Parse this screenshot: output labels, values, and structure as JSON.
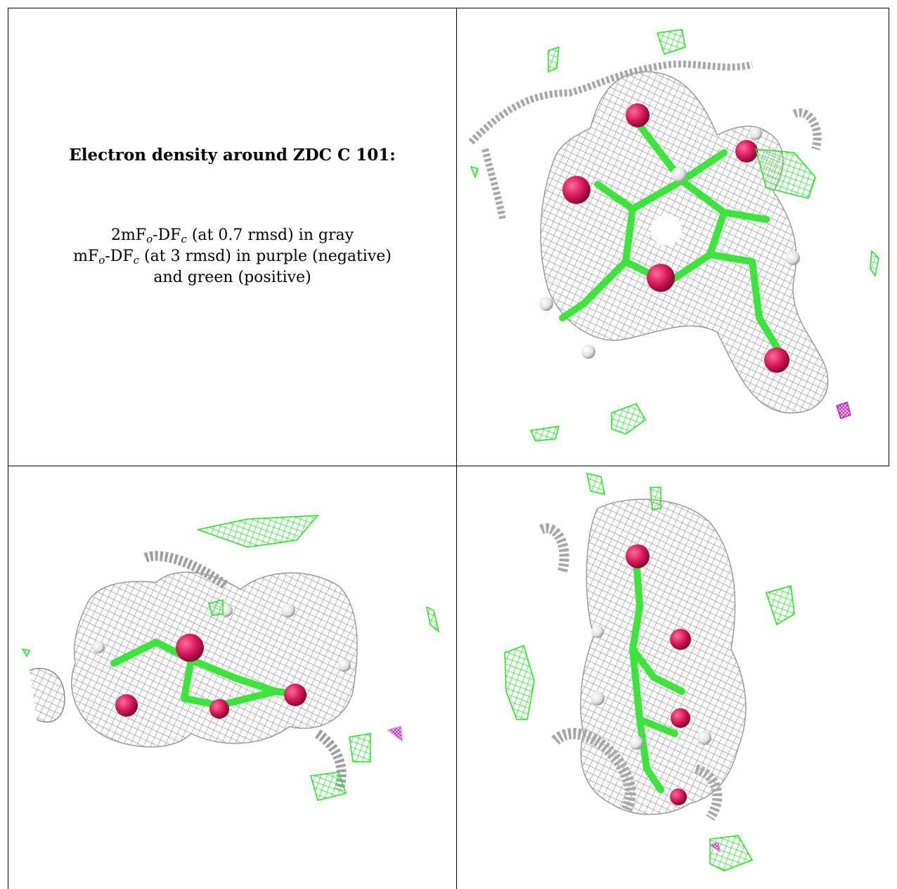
{
  "panel_title": "Electron density around ZDC C 101:",
  "legend": {
    "line1_a": "2mF",
    "line1_sub1": "o",
    "line1_b": "-DF",
    "line1_sub2": "c",
    "line1_c": " (at 0.7 rmsd) in gray",
    "line2_a": "mF",
    "line2_sub1": "o",
    "line2_b": "-DF",
    "line2_sub2": "c",
    "line2_c": " (at 3 rmsd) in purple (negative)",
    "line3": "and green (positive)"
  },
  "colors": {
    "mesh_gray": "#9e9e9e",
    "mesh_green": "#21e621",
    "mesh_purple": "#c21ec2",
    "bond_green": "#39e639",
    "oxygen_red": "#d6175a",
    "hydrogen_white": "#e8e8e8"
  },
  "views": [
    {
      "name": "top-right",
      "icon": "molecule-view-top"
    },
    {
      "name": "bottom-left",
      "icon": "molecule-view-side"
    },
    {
      "name": "bottom-right",
      "icon": "molecule-view-end"
    }
  ]
}
